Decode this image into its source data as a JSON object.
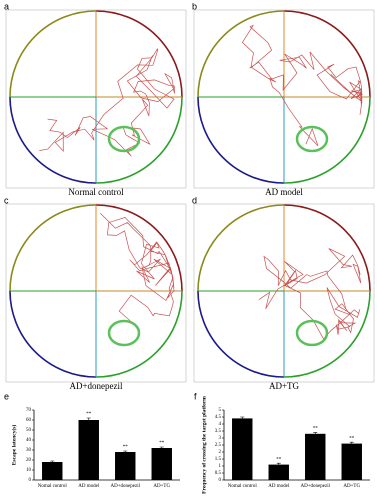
{
  "panels": [
    {
      "letter": "a",
      "label": "Normal control"
    },
    {
      "letter": "b",
      "label": "AD model"
    },
    {
      "letter": "c",
      "label": "AD+donepezil"
    },
    {
      "letter": "d",
      "label": "AD+TG"
    }
  ],
  "chart_data": [
    {
      "type": "bar",
      "panel_label": "e",
      "ylabel": "Escape latency(s)",
      "categories": [
        "Nomal control",
        "AD model",
        "AD+donepezil",
        "AD+TG"
      ],
      "values": [
        18,
        60,
        28,
        32
      ],
      "errors": [
        1,
        2,
        1,
        1
      ],
      "markers": [
        null,
        "**",
        "**",
        "**"
      ],
      "color": "#000000",
      "ylim": [
        0,
        70
      ],
      "yticks": [
        0,
        10,
        20,
        30,
        40,
        50,
        60,
        70
      ]
    },
    {
      "type": "bar",
      "panel_label": "f",
      "ylabel": "Frequency of crossing the target platform",
      "categories": [
        "Nomal control",
        "AD model",
        "AD+donepezil",
        "AD+TG"
      ],
      "values": [
        4.4,
        1.1,
        3.3,
        2.6
      ],
      "errors": [
        0.1,
        0.1,
        0.1,
        0.1
      ],
      "markers": [
        null,
        "**",
        "**",
        "**"
      ],
      "color": "#000000",
      "ylim": [
        0,
        5
      ],
      "yticks": [
        0,
        0.5,
        1,
        1.5,
        2,
        2.5,
        3,
        3.5,
        4,
        4.5,
        5
      ]
    }
  ]
}
